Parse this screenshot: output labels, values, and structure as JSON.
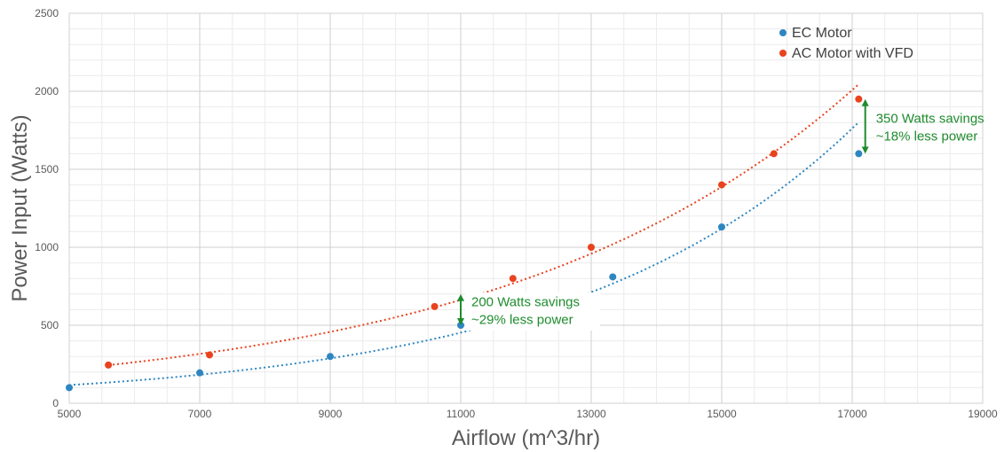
{
  "chart_data": {
    "type": "scatter",
    "xlabel": "Airflow (m^3/hr)",
    "ylabel": "Power Input (Watts)",
    "xlim": [
      5000,
      19000
    ],
    "ylim": [
      0,
      2500
    ],
    "x_ticks": [
      "5000",
      "7000",
      "9000",
      "11000",
      "13000",
      "15000",
      "17000",
      "19000"
    ],
    "y_ticks": [
      "0",
      "500",
      "1000",
      "1500",
      "2000",
      "2500"
    ],
    "grid": true,
    "trendline": "dotted exponential",
    "legend_position": "top-right",
    "series": [
      {
        "name": "EC Motor",
        "color": "#2E86C1",
        "points": [
          [
            5000,
            100
          ],
          [
            7000,
            195
          ],
          [
            9000,
            300
          ],
          [
            11000,
            500
          ],
          [
            13330,
            810
          ],
          [
            15000,
            1130
          ],
          [
            17100,
            1600
          ]
        ]
      },
      {
        "name": "AC Motor with VFD",
        "color": "#E8431E",
        "points": [
          [
            5600,
            245
          ],
          [
            7150,
            310
          ],
          [
            10600,
            620
          ],
          [
            11800,
            800
          ],
          [
            13000,
            1000
          ],
          [
            15000,
            1400
          ],
          [
            15800,
            1600
          ],
          [
            17100,
            1950
          ]
        ]
      }
    ],
    "annotations": [
      {
        "lines": [
          "200 Watts savings",
          "~29% less power"
        ],
        "x": 11000,
        "y_from": 500,
        "y_to": 700,
        "color": "#1E8C2E"
      },
      {
        "lines": [
          "350 Watts savings",
          "~18% less power"
        ],
        "x": 17200,
        "y_from": 1600,
        "y_to": 1950,
        "color": "#1E8C2E"
      }
    ]
  }
}
